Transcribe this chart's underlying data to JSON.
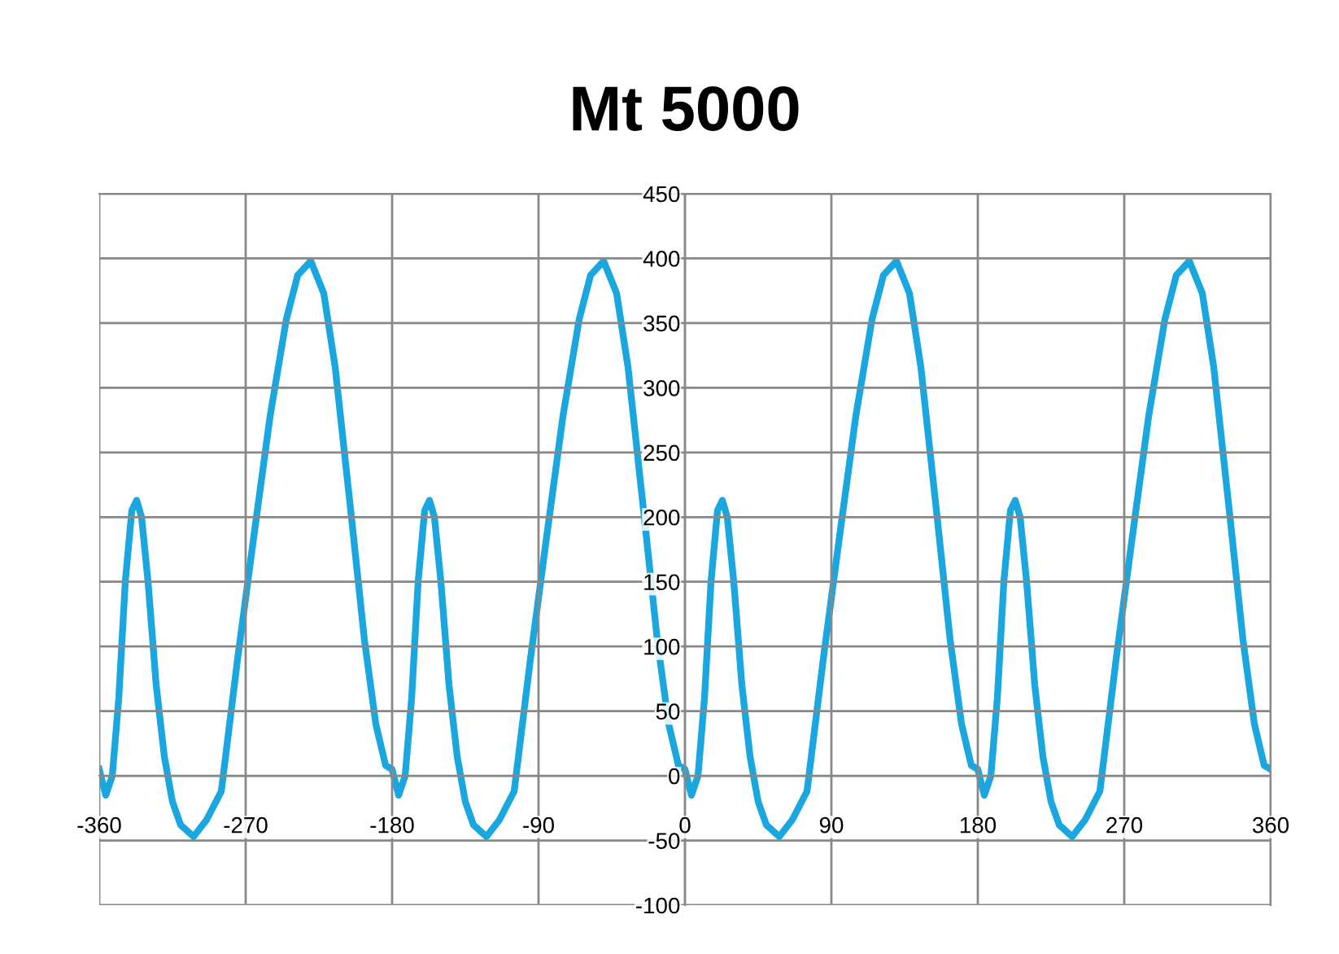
{
  "chart_data": {
    "type": "line",
    "title": "Mt 5000",
    "x": [
      -360,
      -356,
      -352,
      -348,
      -344,
      -340,
      -337,
      -334,
      -330,
      -325,
      -320,
      -315,
      -310,
      -302,
      -294,
      -285,
      -275,
      -265,
      -255,
      -245,
      -238,
      -230,
      -222,
      -215,
      -205,
      -197,
      -190,
      -184,
      -180,
      -176,
      -172,
      -168,
      -164,
      -160,
      -157,
      -154,
      -150,
      -145,
      -140,
      -135,
      -130,
      -122,
      -114,
      -105,
      -95,
      -85,
      -75,
      -65,
      -58,
      -50,
      -42,
      -35,
      -25,
      -17,
      -10,
      -4,
      0,
      4,
      8,
      12,
      16,
      20,
      23,
      26,
      30,
      35,
      40,
      45,
      50,
      58,
      66,
      75,
      85,
      95,
      105,
      115,
      122,
      130,
      138,
      145,
      155,
      163,
      170,
      176,
      180,
      184,
      188,
      192,
      196,
      200,
      203,
      206,
      210,
      215,
      220,
      225,
      230,
      238,
      246,
      255,
      265,
      275,
      285,
      295,
      302,
      310,
      318,
      325,
      335,
      343,
      350,
      356,
      360
    ],
    "series": [
      {
        "color": "#1aa7e0",
        "values": [
          5,
          -15,
          0,
          60,
          150,
          205,
          213,
          200,
          150,
          70,
          15,
          -20,
          -38,
          -47,
          -34,
          -12,
          90,
          185,
          278,
          353,
          387,
          398,
          373,
          316,
          200,
          105,
          40,
          8,
          5,
          -15,
          0,
          60,
          150,
          205,
          213,
          200,
          150,
          70,
          15,
          -20,
          -38,
          -47,
          -34,
          -12,
          90,
          185,
          278,
          353,
          387,
          398,
          373,
          316,
          200,
          105,
          40,
          8,
          5,
          -15,
          0,
          60,
          150,
          205,
          213,
          200,
          150,
          70,
          15,
          -20,
          -38,
          -47,
          -34,
          -12,
          90,
          185,
          278,
          353,
          387,
          398,
          373,
          316,
          200,
          105,
          40,
          8,
          5,
          -15,
          0,
          60,
          150,
          205,
          213,
          200,
          150,
          70,
          15,
          -20,
          -38,
          -47,
          -34,
          -12,
          90,
          185,
          278,
          353,
          387,
          398,
          373,
          316,
          200,
          105,
          40,
          8,
          5
        ]
      }
    ],
    "xlim": [
      -360,
      360
    ],
    "ylim": [
      -100,
      450
    ],
    "xticks": [
      -360,
      -270,
      -180,
      -90,
      0,
      90,
      180,
      270,
      360
    ],
    "yticks": [
      -100,
      -50,
      0,
      50,
      100,
      150,
      200,
      250,
      300,
      350,
      400,
      450
    ],
    "grid": true,
    "marker": "none",
    "line_style": "solid"
  }
}
